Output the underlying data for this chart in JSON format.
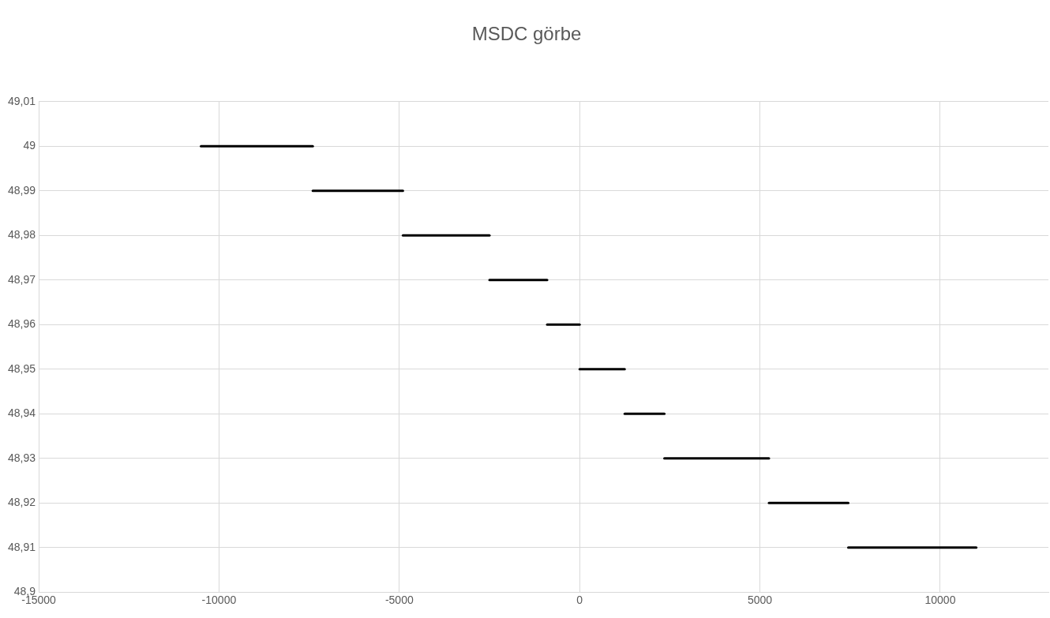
{
  "chart_data": {
    "type": "line",
    "title": "MSDC görbe",
    "series": [
      {
        "x": [
          -10500,
          -7400
        ],
        "values": [
          49,
          49
        ],
        "color": "#000000"
      },
      {
        "x": [
          -7400,
          -4900
        ],
        "values": [
          48.99,
          48.99
        ],
        "color": "#000000"
      },
      {
        "x": [
          -4900,
          -2500
        ],
        "values": [
          48.98,
          48.98
        ],
        "color": "#000000"
      },
      {
        "x": [
          -2500,
          -900
        ],
        "values": [
          48.97,
          48.97
        ],
        "color": "#000000"
      },
      {
        "x": [
          -900,
          0
        ],
        "values": [
          48.96,
          48.96
        ],
        "color": "#000000"
      },
      {
        "x": [
          0,
          1250
        ],
        "values": [
          48.95,
          48.95
        ],
        "color": "#000000"
      },
      {
        "x": [
          1250,
          2350
        ],
        "values": [
          48.94,
          48.94
        ],
        "color": "#000000"
      },
      {
        "x": [
          2350,
          5250
        ],
        "values": [
          48.93,
          48.93
        ],
        "color": "#000000"
      },
      {
        "x": [
          5250,
          7450
        ],
        "values": [
          48.92,
          48.92
        ],
        "color": "#000000"
      },
      {
        "x": [
          7450,
          11000
        ],
        "values": [
          48.91,
          48.91
        ],
        "color": "#000000"
      }
    ],
    "xlim": [
      -15000,
      13000
    ],
    "xticks": [
      -15000,
      -10000,
      -5000,
      0,
      5000,
      10000
    ],
    "ylim": [
      48.9,
      49.01
    ],
    "yticks": [
      {
        "value": 48.9,
        "label": "48,9"
      },
      {
        "value": 48.91,
        "label": "48,91"
      },
      {
        "value": 48.92,
        "label": "48,92"
      },
      {
        "value": 48.93,
        "label": "48,93"
      },
      {
        "value": 48.94,
        "label": "48,94"
      },
      {
        "value": 48.95,
        "label": "48,95"
      },
      {
        "value": 48.96,
        "label": "48,96"
      },
      {
        "value": 48.97,
        "label": "48,97"
      },
      {
        "value": 48.98,
        "label": "48,98"
      },
      {
        "value": 48.99,
        "label": "48,99"
      },
      {
        "value": 49,
        "label": "49"
      },
      {
        "value": 49.01,
        "label": "49,01"
      }
    ],
    "grid": true,
    "legend": false,
    "marker": "none",
    "line_style": "solid"
  }
}
